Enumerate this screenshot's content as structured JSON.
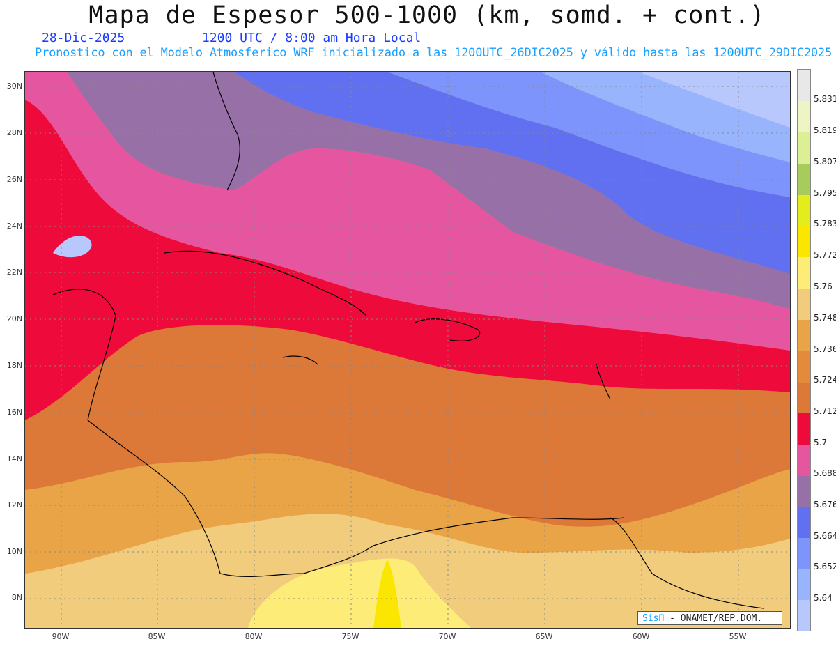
{
  "header": {
    "title": "Mapa de Espesor 500-1000 (km, somd. + cont.)",
    "date": "28-Dic-2025",
    "time": "1200 UTC / 8:00 am Hora Local",
    "subtitle": "Pronostico con el Modelo Atmosferico WRF inicializado a las 1200UTC_26DIC2025 y válido hasta las  1200UTC_29DIC2025"
  },
  "map": {
    "lat_labels": [
      "30N",
      "28N",
      "26N",
      "24N",
      "22N",
      "20N",
      "18N",
      "16N",
      "14N",
      "12N",
      "10N",
      "8N"
    ],
    "lon_labels": [
      "90W",
      "85W",
      "80W",
      "75W",
      "70W",
      "65W",
      "60W",
      "55W"
    ],
    "extent": {
      "lon_min": -91.8,
      "lon_max": -52.5,
      "lat_min": 6.7,
      "lat_max": 30.6
    }
  },
  "colorbar": {
    "labels": [
      "5.831",
      "5.819",
      "5.807",
      "5.795",
      "5.783",
      "5.772",
      "5.76",
      "5.748",
      "5.736",
      "5.724",
      "5.712",
      "5.7",
      "5.688",
      "5.676",
      "5.664",
      "5.652",
      "5.64"
    ],
    "colors": [
      "#e8e8e8",
      "#eef4c4",
      "#dcef94",
      "#a8cc5c",
      "#e4ec1c",
      "#fae600",
      "#feec78",
      "#f0cc7c",
      "#eaa448",
      "#e48a3c",
      "#dc7838",
      "#ee0a3a",
      "#e656a0",
      "#9870a8",
      "#6070f0",
      "#7c94fc",
      "#98b4fc",
      "#b8c8fc"
    ]
  },
  "credit": {
    "logo": "SisΠ",
    "text": "- ONAMET/REP.DOM."
  }
}
